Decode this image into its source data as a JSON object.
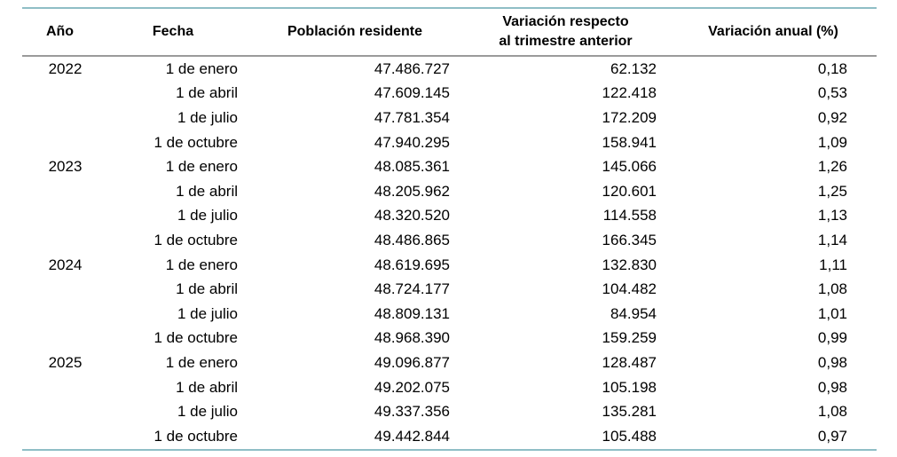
{
  "style": {
    "accent_border_color": "#8FBEC6",
    "header_rule_color": "#9A9A9A",
    "text_color": "#000000",
    "background": "#FFFFFF"
  },
  "chart_data": {
    "type": "table",
    "columns": [
      {
        "label": "Año"
      },
      {
        "label": "Fecha"
      },
      {
        "label": "Población residente"
      },
      {
        "label": "Variación respecto",
        "label_line2": "al trimestre anterior"
      },
      {
        "label": "Variación anual (%)"
      }
    ],
    "rows": [
      {
        "year": "2022",
        "date": "1 de enero",
        "population": "47.486.727",
        "quarterly_change": "62.132",
        "annual_change_pct": "0,18"
      },
      {
        "year": "",
        "date": "1 de abril",
        "population": "47.609.145",
        "quarterly_change": "122.418",
        "annual_change_pct": "0,53"
      },
      {
        "year": "",
        "date": "1 de julio",
        "population": "47.781.354",
        "quarterly_change": "172.209",
        "annual_change_pct": "0,92"
      },
      {
        "year": "",
        "date": "1 de octubre",
        "population": "47.940.295",
        "quarterly_change": "158.941",
        "annual_change_pct": "1,09"
      },
      {
        "year": "2023",
        "date": "1 de enero",
        "population": "48.085.361",
        "quarterly_change": "145.066",
        "annual_change_pct": "1,26"
      },
      {
        "year": "",
        "date": "1 de abril",
        "population": "48.205.962",
        "quarterly_change": "120.601",
        "annual_change_pct": "1,25"
      },
      {
        "year": "",
        "date": "1 de julio",
        "population": "48.320.520",
        "quarterly_change": "114.558",
        "annual_change_pct": "1,13"
      },
      {
        "year": "",
        "date": "1 de octubre",
        "population": "48.486.865",
        "quarterly_change": "166.345",
        "annual_change_pct": "1,14"
      },
      {
        "year": "2024",
        "date": "1 de enero",
        "population": "48.619.695",
        "quarterly_change": "132.830",
        "annual_change_pct": "1,11"
      },
      {
        "year": "",
        "date": "1 de abril",
        "population": "48.724.177",
        "quarterly_change": "104.482",
        "annual_change_pct": "1,08"
      },
      {
        "year": "",
        "date": "1 de julio",
        "population": "48.809.131",
        "quarterly_change": "84.954",
        "annual_change_pct": "1,01"
      },
      {
        "year": "",
        "date": "1 de octubre",
        "population": "48.968.390",
        "quarterly_change": "159.259",
        "annual_change_pct": "0,99"
      },
      {
        "year": "2025",
        "date": "1 de enero",
        "population": "49.096.877",
        "quarterly_change": "128.487",
        "annual_change_pct": "0,98"
      },
      {
        "year": "",
        "date": "1 de abril",
        "population": "49.202.075",
        "quarterly_change": "105.198",
        "annual_change_pct": "0,98"
      },
      {
        "year": "",
        "date": "1 de julio",
        "population": "49.337.356",
        "quarterly_change": "135.281",
        "annual_change_pct": "1,08"
      },
      {
        "year": "",
        "date": "1 de octubre",
        "population": "49.442.844",
        "quarterly_change": "105.488",
        "annual_change_pct": "0,97"
      }
    ]
  }
}
